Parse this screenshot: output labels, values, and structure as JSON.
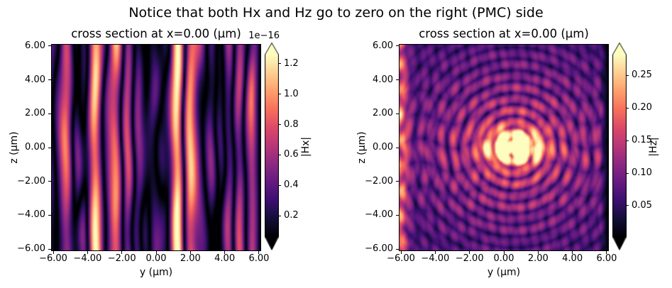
{
  "figure": {
    "suptitle": "Notice that both Hx and Hz go to zero on the right (PMC) side",
    "background_color": "#ffffff",
    "text_color": "#000000",
    "colormap": "magma",
    "magma_stops": [
      "#000004",
      "#140e36",
      "#3b0f70",
      "#641a80",
      "#8c2981",
      "#b73779",
      "#de4968",
      "#f7705c",
      "#fe9f6d",
      "#fecf92",
      "#fcfdbf"
    ]
  },
  "chart_data": [
    {
      "type": "heatmap",
      "field_name": "|Hx|",
      "title": "cross section at x=0.00 (μm)",
      "xlabel": "y (μm)",
      "ylabel": "z (μm)",
      "xlim": [
        -6.125,
        6.125
      ],
      "ylim": [
        -6.125,
        6.125
      ],
      "xtick_values": [
        -6,
        -4,
        -2,
        0,
        2,
        4,
        6
      ],
      "xtick_labels": [
        "−6.00",
        "−4.00",
        "−2.00",
        "0.00",
        "2.00",
        "4.00",
        "6.00"
      ],
      "ytick_values": [
        6,
        4,
        2,
        0,
        -2,
        -4,
        -6
      ],
      "ytick_labels": [
        "6.00",
        "4.00",
        "2.00",
        "0.00",
        "−2.00",
        "−4.00",
        "−6.00"
      ],
      "grid_resolution": 122,
      "colorbar": {
        "label": "|Hx|",
        "offset_text": "1e−16",
        "vmin": 0.06,
        "vmax": 1.26,
        "tick_values": [
          0.2,
          0.4,
          0.6,
          0.8,
          1.0,
          1.2
        ],
        "tick_labels": [
          "0.2",
          "0.4",
          "0.6",
          "0.8",
          "1.0",
          "1.2"
        ],
        "extend": "both"
      },
      "pattern": {
        "kind": "stripes",
        "scale": 0.55,
        "right_edge_zero": {
          "edge": 6.125,
          "width": 0.5
        },
        "components": [
          {
            "a": 1.0,
            "k": 2.6,
            "p": 0.4,
            "m": 0.45,
            "q": 0.5,
            "s": 1.2
          },
          {
            "a": 0.75,
            "k": 4.1,
            "p": 4.2,
            "m": 0.35,
            "q": 0.8,
            "s": -0.5
          },
          {
            "a": 0.5,
            "k": 1.45,
            "p": 2.2,
            "m": 0.3,
            "q": 0.65,
            "s": 2.4
          },
          {
            "a": 0.35,
            "k": 6.3,
            "p": 1.1,
            "m": 0.25,
            "q": 1.1,
            "s": 0.3
          }
        ]
      }
    },
    {
      "type": "heatmap",
      "field_name": "|Hz|",
      "title": "cross section at x=0.00 (μm)",
      "xlabel": "y (μm)",
      "ylabel": "z (μm)",
      "xlim": [
        -6.125,
        6.125
      ],
      "ylim": [
        -6.125,
        6.125
      ],
      "xtick_values": [
        -6,
        -4,
        -2,
        0,
        2,
        4,
        6
      ],
      "xtick_labels": [
        "−6.00",
        "−4.00",
        "−2.00",
        "0.00",
        "2.00",
        "4.00",
        "6.00"
      ],
      "ytick_values": [
        6,
        4,
        2,
        0,
        -2,
        -4,
        -6
      ],
      "ytick_labels": [
        "6.00",
        "4.00",
        "2.00",
        "0.00",
        "−2.00",
        "−4.00",
        "−6.00"
      ],
      "grid_resolution": 122,
      "colorbar": {
        "label": "|Hz|",
        "offset_text": "",
        "vmin": 0.002,
        "vmax": 0.282,
        "tick_values": [
          0.05,
          0.1,
          0.15,
          0.2,
          0.25
        ],
        "tick_labels": [
          "0.05",
          "0.10",
          "0.15",
          "0.20",
          "0.25"
        ],
        "extend": "both"
      },
      "pattern": {
        "kind": "lobes",
        "base": 0.012,
        "lobe": {
          "cy": 0.6,
          "sy": 2.2,
          "sz": 0.8,
          "amp": 0.42,
          "mod_k": 2.8,
          "mod_c": 0.55,
          "mod_p": 0.3,
          "mod_min": 0.3
        },
        "rings": {
          "amp": 0.16,
          "k": 4.6,
          "p": -0.8,
          "decay": 5.0
        },
        "speckle1": {
          "amp": 0.085,
          "ky": 3.4,
          "my": 0.6,
          "qz": 1.9,
          "sz2": 0.7,
          "kz": 2.2,
          "mz": 0.7,
          "qy": 1.6,
          "pz": 1.0
        },
        "speckle2": {
          "amp": 0.03,
          "ky": 5.3,
          "my": 0.9,
          "qz": 1.2
        },
        "left_edge": {
          "amp": 0.17,
          "y0": -6.05,
          "sigma2": 0.15,
          "kz": 2.1,
          "pz": 0.8,
          "min": 0.4
        },
        "right_edge_zero": {
          "edge": 6.125,
          "width": 0.45
        }
      }
    }
  ]
}
